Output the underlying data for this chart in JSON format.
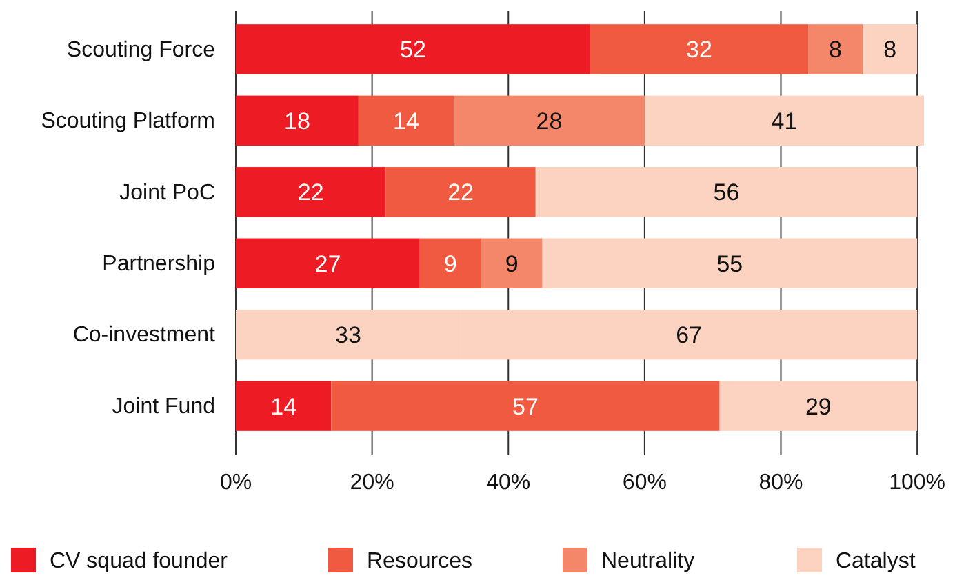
{
  "chart_data": {
    "type": "bar",
    "orientation": "horizontal",
    "stacked": true,
    "data_labels": true,
    "grid": "x",
    "legend": "bottom",
    "categories": [
      "Scouting Force",
      "Scouting Platform",
      "Joint PoC",
      "Partnership",
      "Co-investment",
      "Joint Fund"
    ],
    "xlim": [
      0,
      101
    ],
    "xticks": [
      {
        "value": 0,
        "label": "0%"
      },
      {
        "value": 20,
        "label": "20%"
      },
      {
        "value": 40,
        "label": "40%"
      },
      {
        "value": 60,
        "label": "60%"
      },
      {
        "value": 80,
        "label": "80%"
      },
      {
        "value": 100,
        "label": "100%"
      }
    ],
    "series": [
      {
        "name": "CV squad founder",
        "color": "#ed1c24",
        "colors": [
          "#ed1c24",
          "#ed1c24",
          "#ed1c24",
          "#ed1c24",
          "#fbd3c0",
          "#ed1c24"
        ],
        "values": [
          52,
          18,
          22,
          27,
          33,
          14
        ]
      },
      {
        "name": "Resources",
        "color": "#f05a40",
        "values": [
          32,
          14,
          22,
          9,
          null,
          57
        ]
      },
      {
        "name": "Neutrality",
        "color": "#f4876a",
        "values": [
          8,
          28,
          null,
          9,
          null,
          null
        ]
      },
      {
        "name": "Catalyst",
        "color": "#fbd3c0",
        "values": [
          8,
          41,
          56,
          55,
          67,
          29
        ]
      }
    ]
  }
}
